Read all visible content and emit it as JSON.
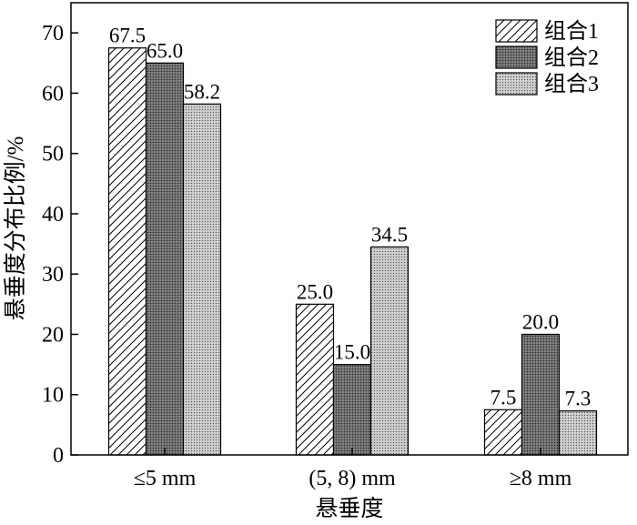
{
  "chart_data": {
    "type": "bar",
    "categories": [
      "≤5 mm",
      "(5, 8) mm",
      "≥8 mm"
    ],
    "series": [
      {
        "name": "组合1",
        "values": [
          67.5,
          25.0,
          7.5
        ],
        "pattern": "hatch",
        "color": "#ffffff"
      },
      {
        "name": "组合2",
        "values": [
          65.0,
          15.0,
          20.0
        ],
        "pattern": "dark-dots",
        "color": "#707070"
      },
      {
        "name": "组合3",
        "values": [
          58.2,
          34.5,
          7.3
        ],
        "pattern": "light-dots",
        "color": "#a8a8a8"
      }
    ],
    "value_labels": [
      [
        "67.5",
        "25.0",
        "7.5"
      ],
      [
        "65.0",
        "15.0",
        "20.0"
      ],
      [
        "58.2",
        "34.5",
        "7.3"
      ]
    ],
    "xlabel": "悬垂度",
    "ylabel": "悬垂度分布比例/%",
    "ylim": [
      0,
      75
    ],
    "yticks": [
      "0",
      "10",
      "20",
      "30",
      "40",
      "50",
      "60",
      "70"
    ],
    "legend_position": "top-right",
    "grid": false
  }
}
